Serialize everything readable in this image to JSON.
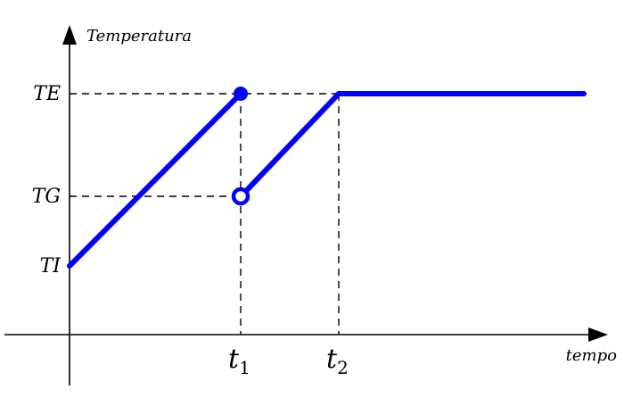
{
  "axes": {
    "y_title": "Temperatura",
    "x_title": "tempo"
  },
  "y_labels": [
    "TE",
    "TG",
    "TI"
  ],
  "x_labels": [
    {
      "base": "t",
      "sub": "1"
    },
    {
      "base": "t",
      "sub": "2"
    }
  ]
}
